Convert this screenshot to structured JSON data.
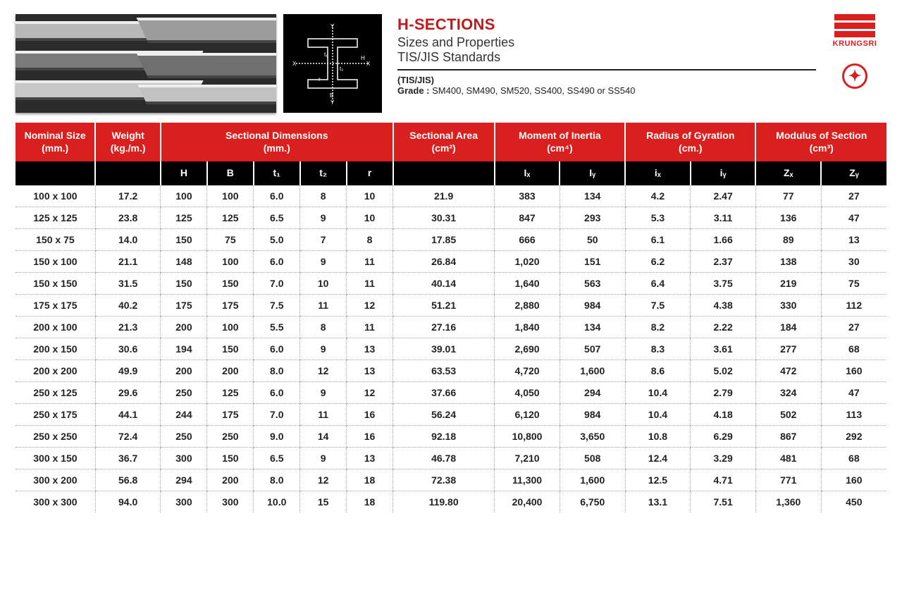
{
  "header": {
    "title": "H-SECTIONS",
    "subtitle": "Sizes and Properties",
    "standards": "TIS/JIS Standards",
    "spec_label": "(TIS/JIS)",
    "grade_label": "Grade :",
    "grade_value": "SM400, SM490, SM520, SS400, SS490 or SS540",
    "brand_name": "KRUNGSRI",
    "colors": {
      "red": "#d9201f",
      "black": "#000000",
      "page_bg": "#ffffff",
      "grid_line": "#a8a8a8"
    },
    "diagram_labels": {
      "Y": "Y",
      "X": "X",
      "H": "H",
      "B": "B",
      "t1": "t₁",
      "t2": "t₂",
      "r": "r"
    }
  },
  "table": {
    "type": "table",
    "font_size": 14,
    "header_bg": "#d9201f",
    "subheader_bg": "#000000",
    "header_color": "#ffffff",
    "row_border": "1px dotted #a8a8a8",
    "columns_top": [
      {
        "label": "Nominal Size",
        "unit": "(mm.)",
        "span": 1
      },
      {
        "label": "Weight",
        "unit": "(kg./m.)",
        "span": 1
      },
      {
        "label": "Sectional Dimensions",
        "unit": "(mm.)",
        "span": 5
      },
      {
        "label": "Sectional Area",
        "unit": "(cm²)",
        "span": 1
      },
      {
        "label": "Moment of Inertia",
        "unit": "(cm⁴)",
        "span": 2
      },
      {
        "label": "Radius of Gyration",
        "unit": "(cm.)",
        "span": 2
      },
      {
        "label": "Modulus of Section",
        "unit": "(cm³)",
        "span": 2
      }
    ],
    "columns_sub": [
      "",
      "",
      "H",
      "B",
      "t₁",
      "t₂",
      "r",
      "",
      "Iₓ",
      "Iᵧ",
      "iₓ",
      "iᵧ",
      "Zₓ",
      "Zᵧ"
    ],
    "rows": [
      [
        "100 x 100",
        "17.2",
        "100",
        "100",
        "6.0",
        "8",
        "10",
        "21.9",
        "383",
        "134",
        "4.2",
        "2.47",
        "77",
        "27"
      ],
      [
        "125 x 125",
        "23.8",
        "125",
        "125",
        "6.5",
        "9",
        "10",
        "30.31",
        "847",
        "293",
        "5.3",
        "3.11",
        "136",
        "47"
      ],
      [
        "150 x 75",
        "14.0",
        "150",
        "75",
        "5.0",
        "7",
        "8",
        "17.85",
        "666",
        "50",
        "6.1",
        "1.66",
        "89",
        "13"
      ],
      [
        "150 x 100",
        "21.1",
        "148",
        "100",
        "6.0",
        "9",
        "11",
        "26.84",
        "1,020",
        "151",
        "6.2",
        "2.37",
        "138",
        "30"
      ],
      [
        "150 x 150",
        "31.5",
        "150",
        "150",
        "7.0",
        "10",
        "11",
        "40.14",
        "1,640",
        "563",
        "6.4",
        "3.75",
        "219",
        "75"
      ],
      [
        "175 x 175",
        "40.2",
        "175",
        "175",
        "7.5",
        "11",
        "12",
        "51.21",
        "2,880",
        "984",
        "7.5",
        "4.38",
        "330",
        "112"
      ],
      [
        "200 x 100",
        "21.3",
        "200",
        "100",
        "5.5",
        "8",
        "11",
        "27.16",
        "1,840",
        "134",
        "8.2",
        "2.22",
        "184",
        "27"
      ],
      [
        "200 x 150",
        "30.6",
        "194",
        "150",
        "6.0",
        "9",
        "13",
        "39.01",
        "2,690",
        "507",
        "8.3",
        "3.61",
        "277",
        "68"
      ],
      [
        "200 x 200",
        "49.9",
        "200",
        "200",
        "8.0",
        "12",
        "13",
        "63.53",
        "4,720",
        "1,600",
        "8.6",
        "5.02",
        "472",
        "160"
      ],
      [
        "250 x 125",
        "29.6",
        "250",
        "125",
        "6.0",
        "9",
        "12",
        "37.66",
        "4,050",
        "294",
        "10.4",
        "2.79",
        "324",
        "47"
      ],
      [
        "250 x 175",
        "44.1",
        "244",
        "175",
        "7.0",
        "11",
        "16",
        "56.24",
        "6,120",
        "984",
        "10.4",
        "4.18",
        "502",
        "113"
      ],
      [
        "250 x 250",
        "72.4",
        "250",
        "250",
        "9.0",
        "14",
        "16",
        "92.18",
        "10,800",
        "3,650",
        "10.8",
        "6.29",
        "867",
        "292"
      ],
      [
        "300 x 150",
        "36.7",
        "300",
        "150",
        "6.5",
        "9",
        "13",
        "46.78",
        "7,210",
        "508",
        "12.4",
        "3.29",
        "481",
        "68"
      ],
      [
        "300 x 200",
        "56.8",
        "294",
        "200",
        "8.0",
        "12",
        "18",
        "72.38",
        "11,300",
        "1,600",
        "12.5",
        "4.71",
        "771",
        "160"
      ],
      [
        "300 x 300",
        "94.0",
        "300",
        "300",
        "10.0",
        "15",
        "18",
        "119.80",
        "20,400",
        "6,750",
        "13.1",
        "7.51",
        "1,360",
        "450"
      ]
    ]
  }
}
